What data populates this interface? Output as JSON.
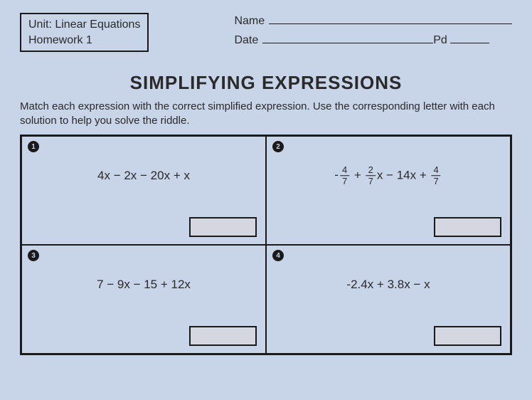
{
  "header": {
    "unit_line1": "Unit: Linear Equations",
    "unit_line2": "Homework 1",
    "name_label": "Name",
    "date_label": "Date",
    "pd_label": "Pd"
  },
  "title": "SIMPLIFYING EXPRESSIONS",
  "instructions": "Match each expression with the correct simplified expression. Use the corresponding letter with each solution to help you solve the riddle.",
  "cells": [
    {
      "num": "1",
      "expr_plain": "4x − 2x − 20x + x"
    },
    {
      "num": "2",
      "expr_frac": {
        "t1_neg": "-",
        "t1_num": "4",
        "t1_den": "7",
        "plus1": "+",
        "t2_num": "2",
        "t2_den": "7",
        "t2_var": "x",
        "mid": " − 14x + ",
        "t3_num": "4",
        "t3_den": "7"
      }
    },
    {
      "num": "3",
      "expr_plain": "7 − 9x − 15 + 12x"
    },
    {
      "num": "4",
      "expr_plain": "-2.4x + 3.8x − x"
    }
  ],
  "colors": {
    "bg": "#c8d4e8",
    "ink": "#1a1a1a",
    "answer_fill": "rgba(230,220,210,0.4)"
  }
}
